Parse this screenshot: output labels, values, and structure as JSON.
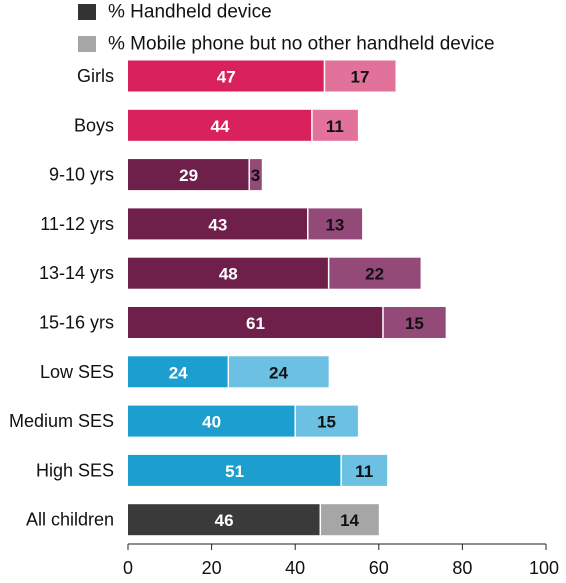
{
  "chart_data": {
    "type": "bar",
    "orientation": "horizontal",
    "stacked": true,
    "categories": [
      "Girls",
      "Boys",
      "9-10 yrs",
      "11-12 yrs",
      "13-14 yrs",
      "15-16 yrs",
      "Low  SES",
      "Medium SES",
      "High SES",
      "All children"
    ],
    "series": [
      {
        "name": "% Handheld device",
        "values": [
          47,
          44,
          29,
          43,
          48,
          61,
          24,
          40,
          51,
          46
        ],
        "legend_color": "#333333",
        "colors": [
          "#d9215b",
          "#d9215b",
          "#6e1f4a",
          "#6e1f4a",
          "#6e1f4a",
          "#6e1f4a",
          "#1c9fcf",
          "#1c9fcf",
          "#1c9fcf",
          "#3a3a3a"
        ],
        "label_colors": [
          "#ffffff",
          "#ffffff",
          "#ffffff",
          "#ffffff",
          "#ffffff",
          "#ffffff",
          "#ffffff",
          "#ffffff",
          "#ffffff",
          "#ffffff"
        ]
      },
      {
        "name": "% Mobile phone but no other handheld device",
        "values": [
          17,
          11,
          3,
          13,
          22,
          15,
          24,
          15,
          11,
          14
        ],
        "legend_color": "#a6a6a6",
        "colors": [
          "#e2729a",
          "#e2729a",
          "#944a78",
          "#944a78",
          "#944a78",
          "#944a78",
          "#6cc0e2",
          "#6cc0e2",
          "#6cc0e2",
          "#a6a6a6"
        ],
        "label_colors": [
          "#111111",
          "#111111",
          "#111111",
          "#111111",
          "#111111",
          "#111111",
          "#111111",
          "#111111",
          "#111111",
          "#111111"
        ]
      }
    ],
    "xlim": [
      0,
      100
    ],
    "xticks": [
      0,
      20,
      40,
      60,
      80,
      100
    ],
    "grid": false,
    "legend_position": "top"
  }
}
